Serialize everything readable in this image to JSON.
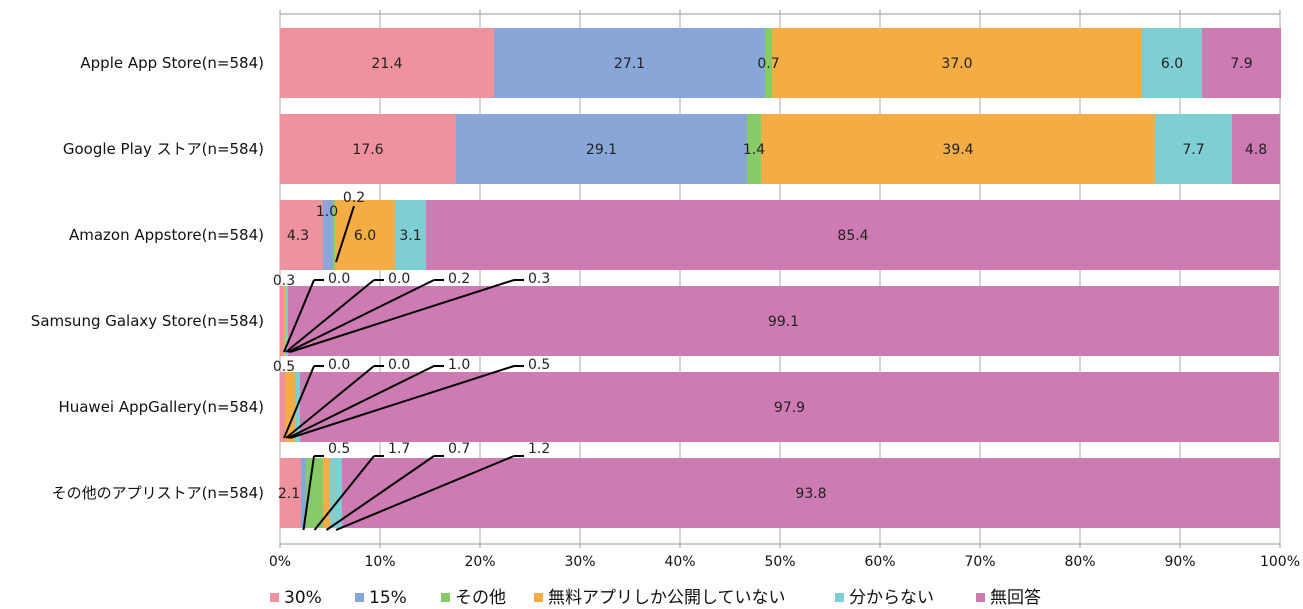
{
  "chart_data": {
    "type": "bar",
    "orientation": "horizontal",
    "stacked": true,
    "categories": [
      "Apple App Store(n=584)",
      "Google Play ストア(n=584)",
      "Amazon Appstore(n=584)",
      "Samsung Galaxy Store(n=584)",
      "Huawei AppGallery(n=584)",
      "その他のアプリストア(n=584)"
    ],
    "series": [
      {
        "name": "30%",
        "color": "#F0919E",
        "values": [
          21.4,
          17.6,
          4.3,
          0.3,
          0.5,
          2.1
        ]
      },
      {
        "name": "15%",
        "color": "#88A6D7",
        "values": [
          27.1,
          29.1,
          1.0,
          0.0,
          0.0,
          0.5
        ]
      },
      {
        "name": "その他",
        "color": "#86CB68",
        "values": [
          0.7,
          1.4,
          0.2,
          0.0,
          0.0,
          1.7
        ]
      },
      {
        "name": "無料アプリしか公開していない",
        "color": "#F4AC45",
        "values": [
          37.0,
          39.4,
          6.0,
          0.2,
          1.0,
          0.7
        ]
      },
      {
        "name": "分からない",
        "color": "#7ECFD3",
        "values": [
          6.0,
          7.7,
          3.1,
          0.3,
          0.5,
          1.2
        ]
      },
      {
        "name": "無回答",
        "color": "#CD7BB2",
        "values": [
          7.9,
          4.8,
          85.4,
          99.1,
          97.9,
          93.8
        ]
      }
    ],
    "value_labels": [
      [
        "21.4",
        "27.1",
        "0.7",
        "37.0",
        "6.0",
        "7.9"
      ],
      [
        "17.6",
        "29.1",
        "1.4",
        "39.4",
        "7.7",
        "4.8"
      ],
      [
        "4.3",
        "1.0",
        "0.2",
        "6.0",
        "3.1",
        "85.4"
      ],
      [
        "0.3",
        "0.0",
        "0.0",
        "0.2",
        "0.3",
        "99.1"
      ],
      [
        "0.5",
        "0.0",
        "0.0",
        "1.0",
        "0.5",
        "97.9"
      ],
      [
        "2.1",
        "0.5",
        "1.7",
        "0.7",
        "1.2",
        "93.8"
      ]
    ],
    "x_ticks": [
      "0%",
      "10%",
      "20%",
      "30%",
      "40%",
      "50%",
      "60%",
      "70%",
      "80%",
      "90%",
      "100%"
    ],
    "xlim": [
      0,
      100
    ],
    "grid": true,
    "legend_position": "bottom",
    "title": "",
    "xlabel": "",
    "ylabel": ""
  }
}
